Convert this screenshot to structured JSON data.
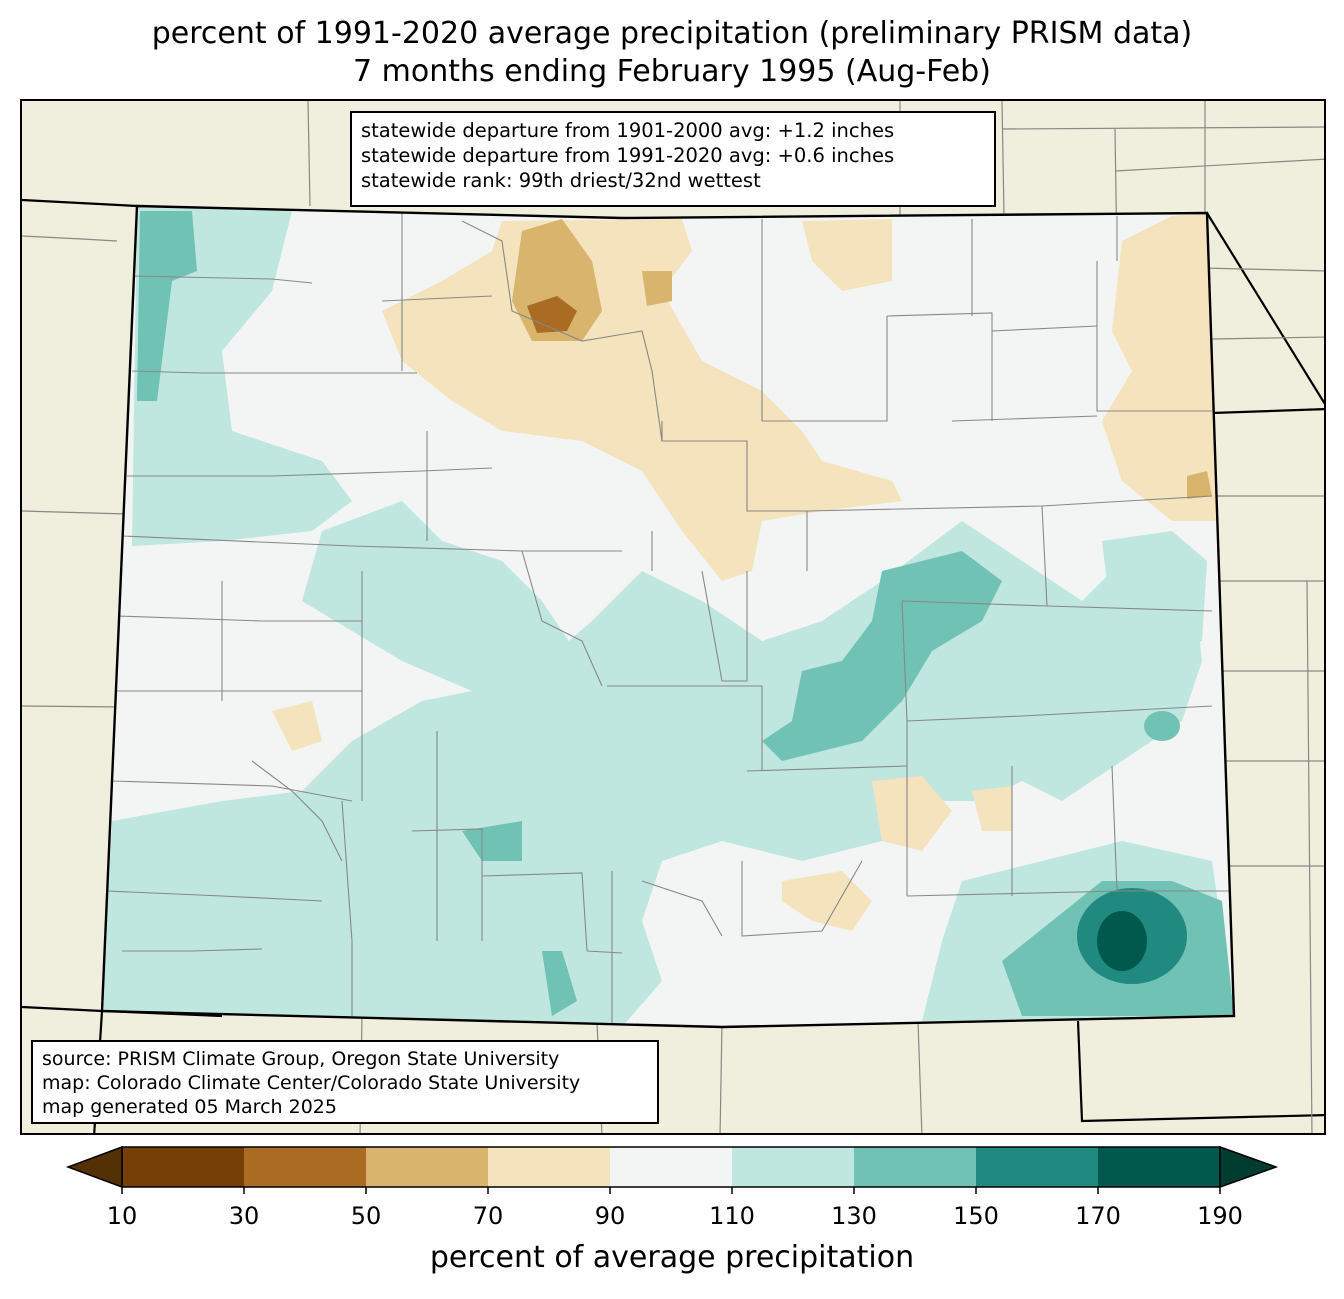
{
  "title_line1": "percent of 1991-2020 average precipitation (preliminary PRISM data)",
  "title_line2": "7 months ending February 1995 (Aug-Feb)",
  "stats": {
    "line1": "statewide departure from 1901-2000 avg: +1.2 inches",
    "line2": "statewide departure from 1991-2020 avg: +0.6 inches",
    "line3": "statewide rank: 99th driest/32nd wettest"
  },
  "credits": {
    "line1": "source: PRISM Climate Group, Oregon State University",
    "line2": "map: Colorado Climate Center/Colorado State University",
    "line3": "map generated 05 March 2025"
  },
  "colorbar": {
    "label": "percent of average precipitation",
    "ticks": [
      "10",
      "30",
      "50",
      "70",
      "90",
      "110",
      "130",
      "150",
      "170",
      "190"
    ],
    "under_color": "#543005",
    "over_color": "#003c30",
    "bins": [
      {
        "range": "10-30",
        "color": "#744008"
      },
      {
        "range": "30-50",
        "color": "#aa6c23"
      },
      {
        "range": "50-70",
        "color": "#d8b46d"
      },
      {
        "range": "70-90",
        "color": "#f4e3bc"
      },
      {
        "range": "90-110",
        "color": "#f3f5f4"
      },
      {
        "range": "110-130",
        "color": "#bfe6df"
      },
      {
        "range": "130-150",
        "color": "#70c2b5"
      },
      {
        "range": "150-170",
        "color": "#218a80"
      },
      {
        "range": "170-190",
        "color": "#01594e"
      }
    ]
  },
  "colors": {
    "background_land": "#f0eedc",
    "state_border": "#000000",
    "county_border": "#888888"
  }
}
